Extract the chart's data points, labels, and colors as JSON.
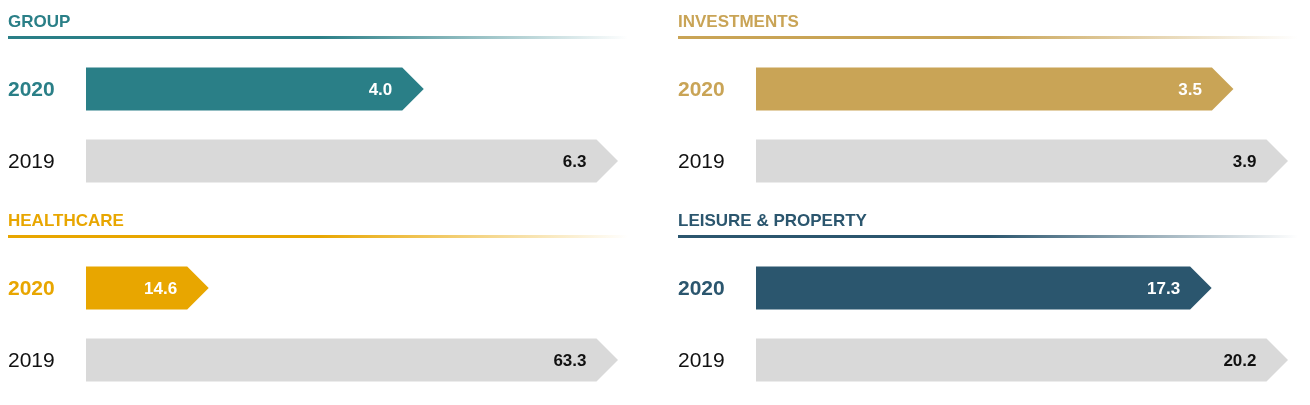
{
  "chart_data": [
    {
      "type": "bar",
      "orientation": "horizontal",
      "title": "GROUP",
      "categories": [
        "2020",
        "2019"
      ],
      "values": [
        4.0,
        6.3
      ],
      "colors": [
        "#2a7f87",
        "#d9d9d9"
      ],
      "value_labels": [
        "4.0",
        "6.3"
      ]
    },
    {
      "type": "bar",
      "orientation": "horizontal",
      "title": "INVESTMENTS",
      "categories": [
        "2020",
        "2019"
      ],
      "values": [
        3.5,
        3.9
      ],
      "colors": [
        "#c9a456",
        "#d9d9d9"
      ],
      "value_labels": [
        "3.5",
        "3.9"
      ]
    },
    {
      "type": "bar",
      "orientation": "horizontal",
      "title": "HEALTHCARE",
      "categories": [
        "2020",
        "2019"
      ],
      "values": [
        14.6,
        63.3
      ],
      "colors": [
        "#e8a600",
        "#d9d9d9"
      ],
      "value_labels": [
        "14.6",
        "63.3"
      ]
    },
    {
      "type": "bar",
      "orientation": "horizontal",
      "title": "LEISURE & PROPERTY",
      "categories": [
        "2020",
        "2019"
      ],
      "values": [
        17.3,
        20.2
      ],
      "colors": [
        "#2b566e",
        "#d9d9d9"
      ],
      "value_labels": [
        "17.3",
        "20.2"
      ]
    }
  ]
}
